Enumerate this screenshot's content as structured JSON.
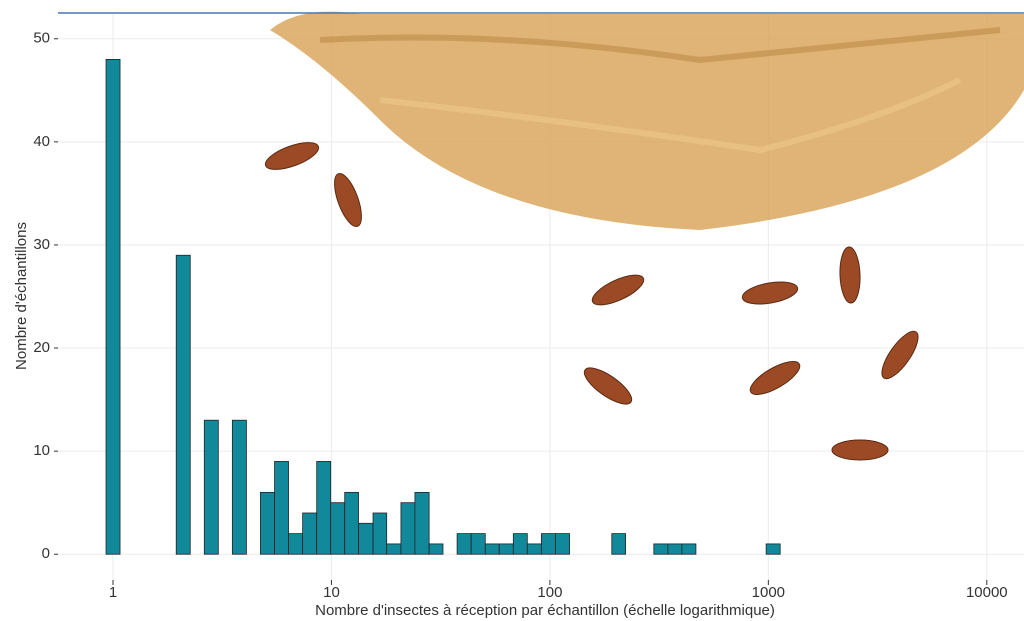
{
  "chart_data": {
    "type": "histogram",
    "xlabel": "Nombre d'insectes à réception par échantillon (échelle logarithmique)",
    "ylabel": "Nombre d'échantillons",
    "bins": [
      0.929,
      1.077,
      1.249,
      1.448,
      1.679,
      1.947,
      2.257,
      2.617,
      3.034,
      3.518,
      4.08,
      4.73,
      5.49,
      6.36,
      7.38,
      8.56,
      9.92,
      11.5,
      13.3,
      15.5,
      17.9,
      20.8,
      24.1,
      28.0,
      32.4,
      37.6,
      43.6,
      50.6,
      58.6,
      68.0,
      78.8,
      91.4,
      106,
      123,
      143,
      165,
      192,
      222,
      258,
      299,
      347,
      402,
      466,
      540,
      627,
      727,
      843,
      977,
      1133,
      1314,
      1523,
      1766,
      2048,
      2375,
      2754,
      3193,
      3703,
      4294,
      4979,
      5774,
      6695,
      7764,
      9003
    ],
    "values": [
      48,
      0,
      0,
      0,
      0,
      29,
      0,
      13,
      0,
      13,
      0,
      6,
      9,
      2,
      4,
      9,
      5,
      6,
      3,
      4,
      1,
      5,
      6,
      1,
      0,
      2,
      2,
      1,
      1,
      2,
      1,
      2,
      2,
      0,
      0,
      0,
      2,
      0,
      0,
      1,
      1,
      1,
      0,
      0,
      0,
      0,
      0,
      1,
      0,
      0,
      0,
      0,
      0,
      0,
      0,
      0,
      0,
      0,
      0,
      0,
      0,
      0
    ],
    "color": "#12899b",
    "xscale": "log",
    "xlim": [
      0.56,
      14800
    ],
    "ylim": [
      -2.5,
      52.5
    ],
    "xticks": [
      1,
      10,
      100,
      1000,
      10000
    ],
    "yticks": [
      0,
      10,
      20,
      30,
      40,
      50
    ],
    "grid": true
  }
}
